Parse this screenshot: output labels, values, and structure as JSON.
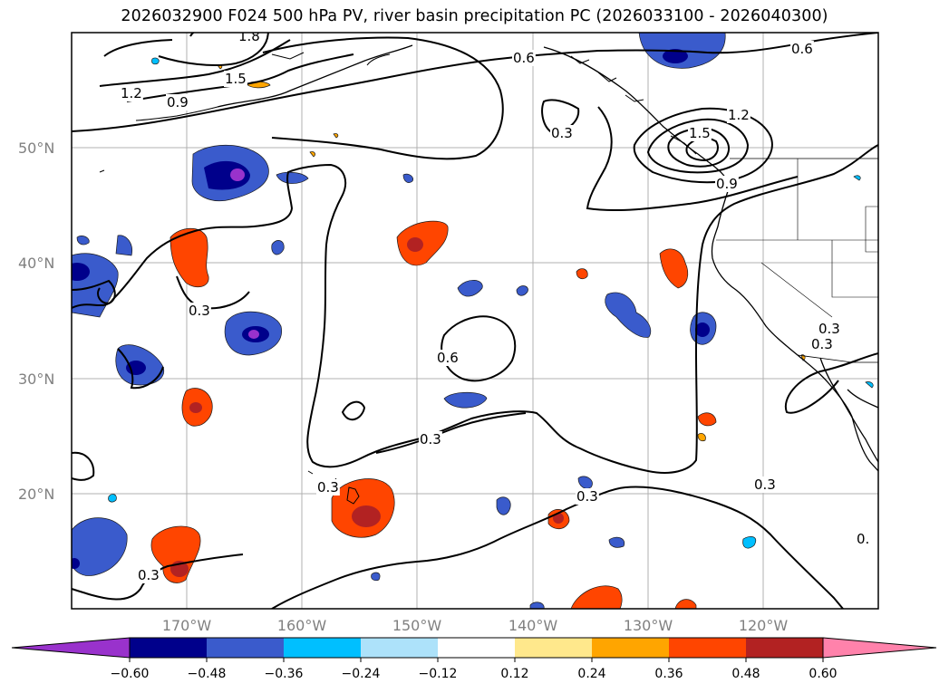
{
  "title": "2026032900 F024 500 hPa PV, river basin precipitation PC (2026033100 - 2026040300)",
  "latitude_labels": [
    "50°N",
    "40°N",
    "30°N",
    "20°N"
  ],
  "longitude_labels": [
    "170°W",
    "160°W",
    "150°W",
    "140°W",
    "130°W",
    "120°W"
  ],
  "contour_labels": [
    "1.8",
    "1.5",
    "1.2",
    "0.9",
    "0.6",
    "0.3",
    "0.3",
    "0.6",
    "0.6",
    "1.2",
    "1.5",
    "0.9",
    "0.3",
    "0.3",
    "0.3",
    "0.3",
    "0.3",
    "0.3",
    "0.3",
    "0."
  ],
  "colorbar": {
    "tick_labels": [
      "−0.60",
      "−0.48",
      "−0.36",
      "−0.24",
      "−0.12",
      "0.12",
      "0.24",
      "0.36",
      "0.48",
      "0.60"
    ],
    "colors": [
      "#9932CC",
      "#00008B",
      "#3A5BCC",
      "#00BFFF",
      "#ADE2FA",
      "#FFFFFF",
      "#FFE88C",
      "#FFA500",
      "#FF4500",
      "#B22222",
      "#FF82AB"
    ]
  },
  "colors": {
    "contour": "#000000",
    "grid": "#b0b0b0",
    "axis_label": "#808080"
  }
}
